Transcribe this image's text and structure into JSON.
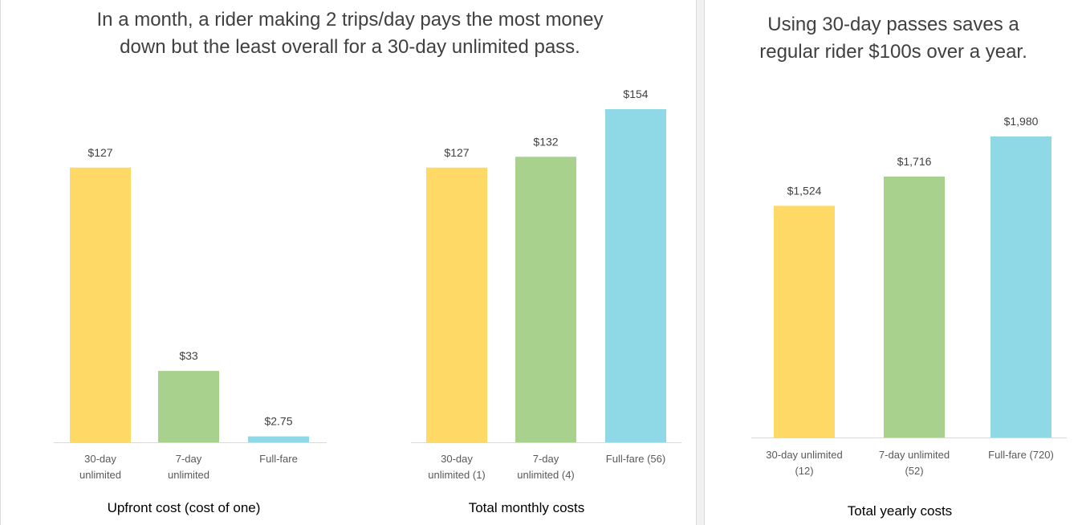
{
  "colors": {
    "thirty_day": "#FFD966",
    "seven_day": "#A9D18E",
    "full_fare": "#8FD8E5",
    "axis": "#d9d9d9"
  },
  "left_panel": {
    "title_line1": "In a month, a rider making 2 trips/day pays the most money",
    "title_line2": "down but the least  overall for a 30-day unlimited pass."
  },
  "right_panel": {
    "title_line1": "Using 30-day passes saves a",
    "title_line2": "regular rider $100s over a year."
  },
  "chart_data": [
    {
      "type": "bar",
      "title": "Upfront cost (cost of one)",
      "categories": [
        [
          "30-day",
          "unlimited"
        ],
        [
          "7-day",
          "unlimited"
        ],
        [
          "Full-fare"
        ]
      ],
      "values": [
        127,
        33,
        2.75
      ],
      "data_labels": [
        "$127",
        "$33",
        "$2.75"
      ],
      "colors": [
        "#FFD966",
        "#A9D18E",
        "#8FD8E5"
      ],
      "ylim": [
        0,
        154
      ]
    },
    {
      "type": "bar",
      "title": "Total monthly costs",
      "categories": [
        [
          "30-day",
          "unlimited (1)"
        ],
        [
          "7-day",
          "unlimited (4)"
        ],
        [
          "Full-fare (56)"
        ]
      ],
      "values": [
        127,
        132,
        154
      ],
      "data_labels": [
        "$127",
        "$132",
        "$154"
      ],
      "colors": [
        "#FFD966",
        "#A9D18E",
        "#8FD8E5"
      ],
      "ylim": [
        0,
        154
      ]
    },
    {
      "type": "bar",
      "title": "Total yearly costs",
      "categories": [
        [
          "30-day unlimited",
          "(12)"
        ],
        [
          "7-day unlimited",
          "(52)"
        ],
        [
          "Full-fare (720)"
        ]
      ],
      "values": [
        1524,
        1716,
        1980
      ],
      "data_labels": [
        "$1,524",
        "$1,716",
        "$1,980"
      ],
      "colors": [
        "#FFD966",
        "#A9D18E",
        "#8FD8E5"
      ],
      "ylim": [
        0,
        1980
      ]
    }
  ]
}
